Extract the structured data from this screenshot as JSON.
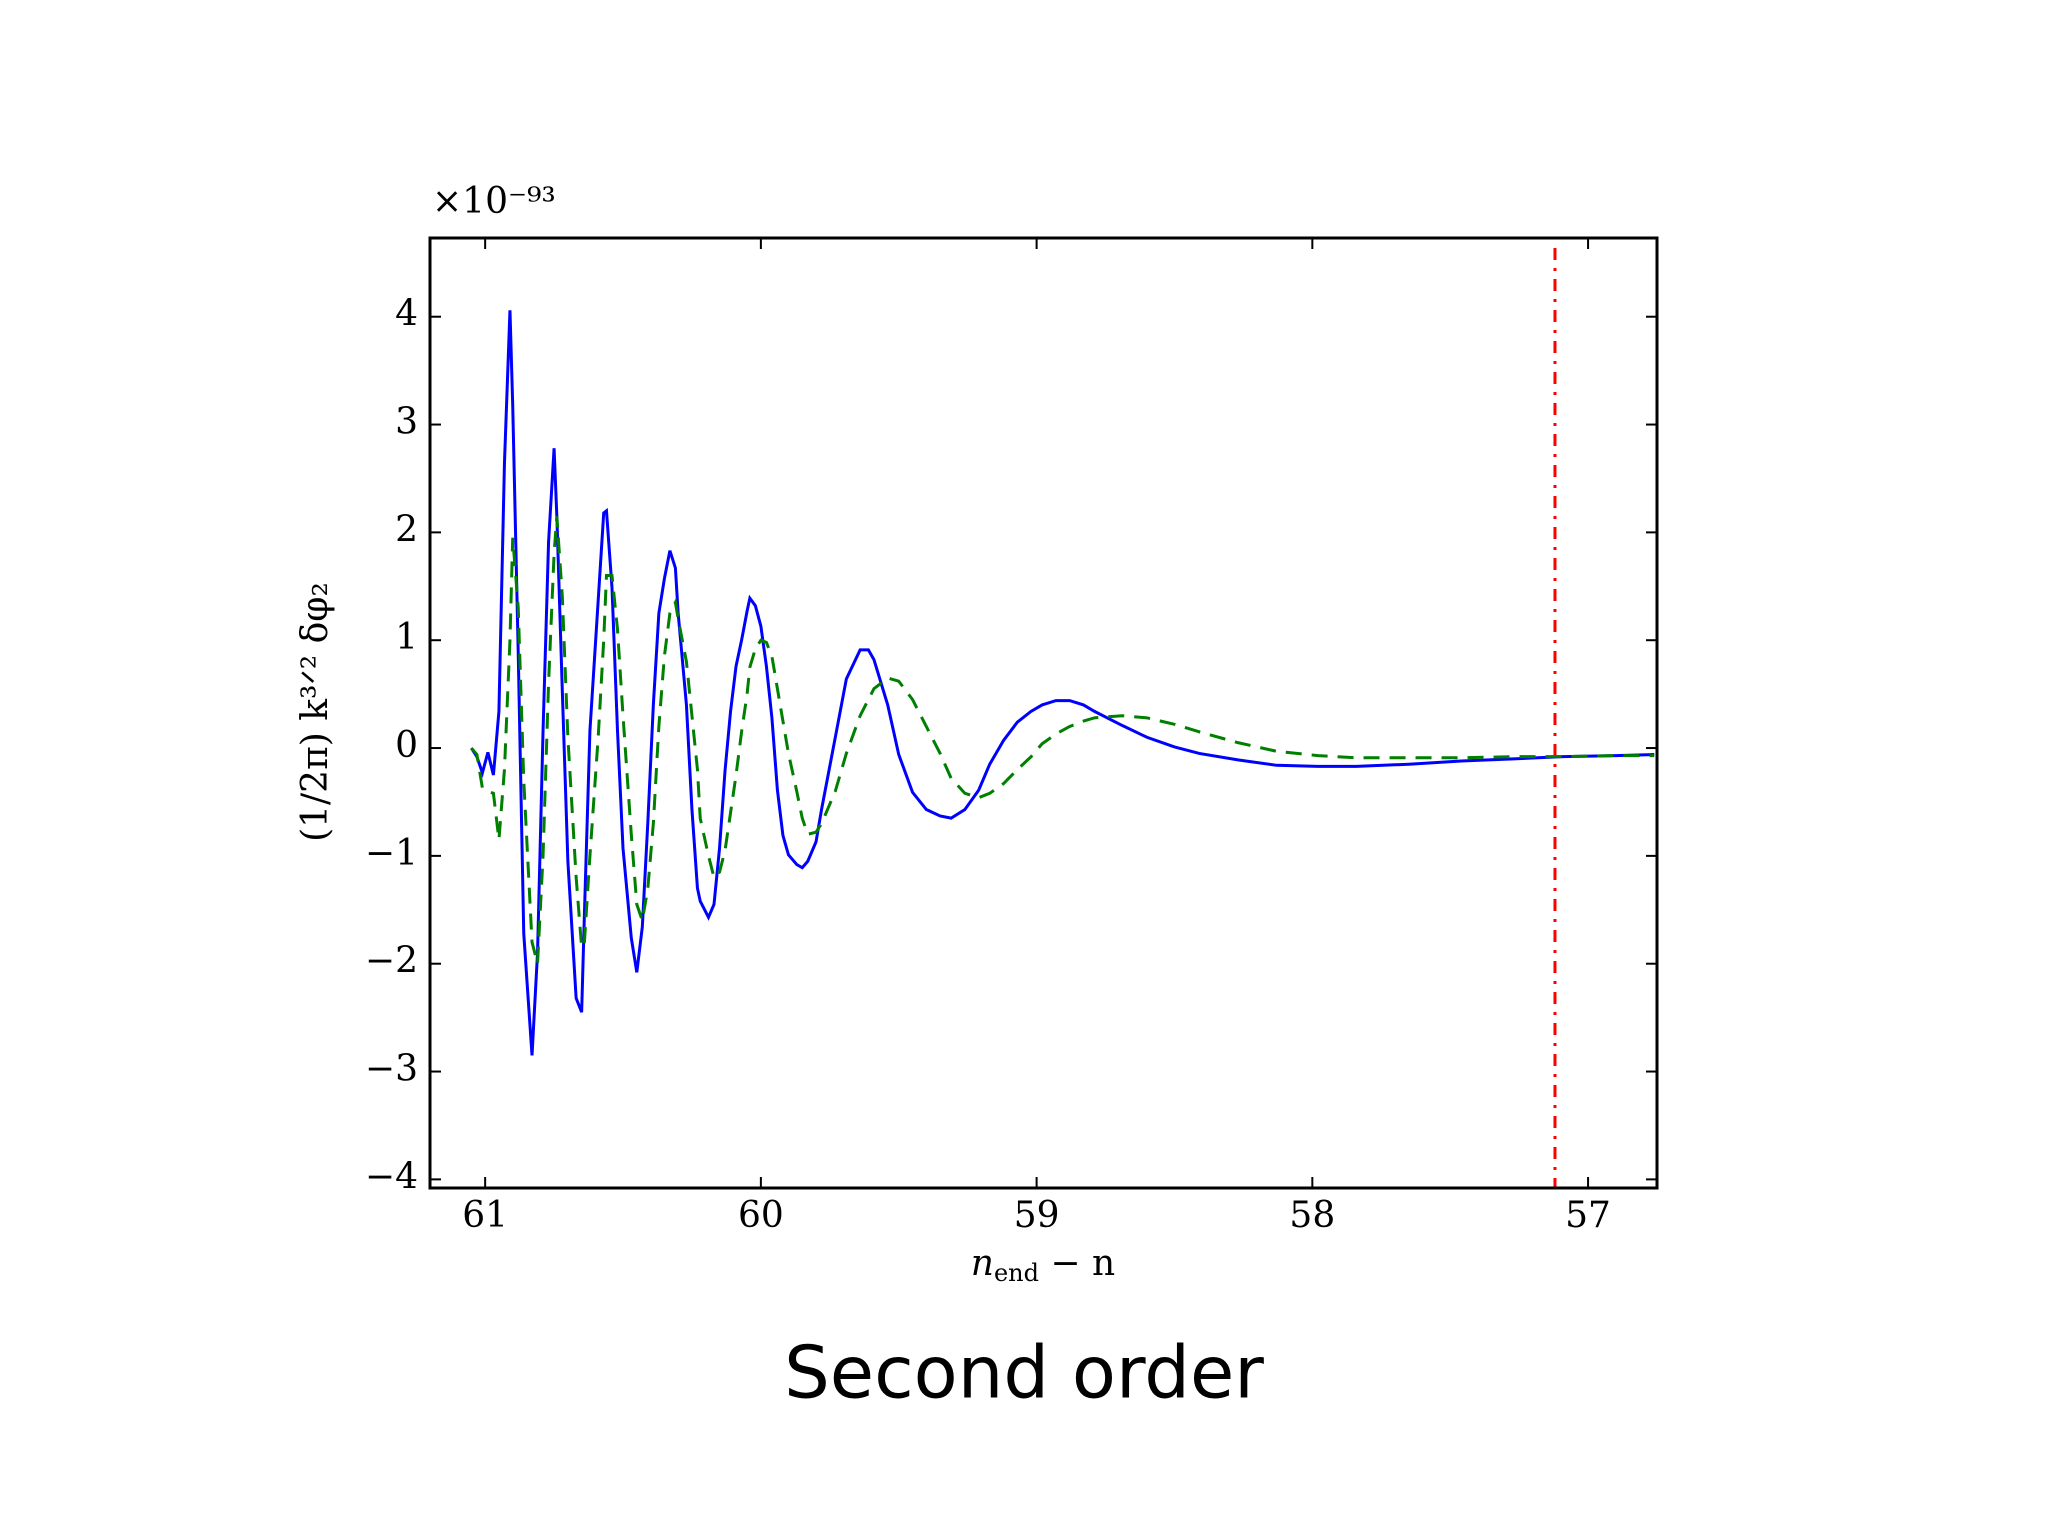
{
  "chart_data": {
    "type": "line",
    "offset_label": "×10⁻⁹³",
    "ylabel": "(1/2π) k³ᐟ² δφ₂",
    "xlabel": {
      "base": "n",
      "sub": "end",
      "rest": " − n"
    },
    "caption": "Second order",
    "xlim": [
      61.2,
      56.75
    ],
    "ylim": [
      -4.08,
      4.73
    ],
    "xticks": [
      61,
      60,
      59,
      58,
      57
    ],
    "yticks": [
      {
        "value": -4,
        "label": "−4"
      },
      {
        "value": -3,
        "label": "−3"
      },
      {
        "value": -2,
        "label": "−2"
      },
      {
        "value": -1,
        "label": "−1"
      },
      0,
      1,
      2,
      3,
      4
    ],
    "vline": {
      "x": 57.12,
      "color": "#ff0000",
      "style": "dashdot"
    },
    "x": [
      61.05,
      61.03,
      61.01,
      60.99,
      60.97,
      60.95,
      60.93,
      60.91,
      60.9,
      60.88,
      60.86,
      60.83,
      60.81,
      60.79,
      60.77,
      60.75,
      60.74,
      60.72,
      60.7,
      60.67,
      60.65,
      60.64,
      60.62,
      60.59,
      60.57,
      60.56,
      60.54,
      60.52,
      60.5,
      60.47,
      60.45,
      60.43,
      60.41,
      60.39,
      60.37,
      60.35,
      60.33,
      60.31,
      60.3,
      60.27,
      60.25,
      60.23,
      60.22,
      60.19,
      60.17,
      60.15,
      60.13,
      60.11,
      60.09,
      60.07,
      60.05,
      60.04,
      60.02,
      60.0,
      59.98,
      59.96,
      59.94,
      59.92,
      59.9,
      59.87,
      59.85,
      59.83,
      59.8,
      59.78,
      59.73,
      59.69,
      59.64,
      59.61,
      59.59,
      59.54,
      59.5,
      59.45,
      59.4,
      59.35,
      59.31,
      59.26,
      59.21,
      59.17,
      59.12,
      59.07,
      59.02,
      58.98,
      58.93,
      58.88,
      58.83,
      58.79,
      58.69,
      58.6,
      58.5,
      58.41,
      58.27,
      58.13,
      57.98,
      57.84,
      57.65,
      57.46,
      57.27,
      57.09,
      56.9,
      56.76
    ],
    "series": [
      {
        "color": "#0000ff",
        "dash": "solid",
        "values": [
          0,
          -0.08,
          -0.23,
          -0.04,
          -0.25,
          0.34,
          2.64,
          4.06,
          3.18,
          0.88,
          -1.72,
          -2.85,
          -1.9,
          0.16,
          1.91,
          2.78,
          2.15,
          0.52,
          -1.05,
          -2.32,
          -2.45,
          -1.54,
          0.16,
          1.37,
          2.18,
          2.2,
          1.49,
          0.16,
          -0.93,
          -1.76,
          -2.08,
          -1.66,
          -0.69,
          0.4,
          1.25,
          1.57,
          1.83,
          1.67,
          1.25,
          0.4,
          -0.57,
          -1.3,
          -1.42,
          -1.57,
          -1.45,
          -0.93,
          -0.21,
          0.34,
          0.76,
          1.0,
          1.27,
          1.39,
          1.32,
          1.13,
          0.76,
          0.28,
          -0.39,
          -0.81,
          -0.99,
          -1.08,
          -1.11,
          -1.05,
          -0.87,
          -0.57,
          0.1,
          0.64,
          0.91,
          0.91,
          0.82,
          0.4,
          -0.06,
          -0.41,
          -0.57,
          -0.63,
          -0.65,
          -0.57,
          -0.39,
          -0.15,
          0.07,
          0.24,
          0.34,
          0.4,
          0.44,
          0.44,
          0.4,
          0.34,
          0.21,
          0.1,
          0.01,
          -0.05,
          -0.11,
          -0.16,
          -0.17,
          -0.17,
          -0.15,
          -0.12,
          -0.1,
          -0.08,
          -0.07,
          -0.06
        ]
      },
      {
        "color": "#007f00",
        "dash": "dashed",
        "values": [
          0,
          -0.06,
          -0.37,
          -0.4,
          -0.42,
          -0.85,
          -0.2,
          1.0,
          1.95,
          1.3,
          -0.3,
          -1.8,
          -2.0,
          -1.0,
          0.6,
          1.8,
          2.15,
          1.4,
          0.1,
          -1.2,
          -1.85,
          -1.8,
          -1.0,
          0.1,
          1.0,
          1.6,
          1.6,
          1.1,
          0.3,
          -0.8,
          -1.45,
          -1.6,
          -1.3,
          -0.7,
          0.2,
          0.85,
          1.25,
          1.35,
          1.2,
          0.8,
          0.3,
          -0.2,
          -0.65,
          -1.0,
          -1.2,
          -1.15,
          -0.95,
          -0.6,
          -0.25,
          0.15,
          0.5,
          0.75,
          0.92,
          1.0,
          0.98,
          0.85,
          0.55,
          0.25,
          -0.05,
          -0.4,
          -0.65,
          -0.8,
          -0.78,
          -0.7,
          -0.4,
          -0.05,
          0.3,
          0.45,
          0.55,
          0.65,
          0.62,
          0.45,
          0.2,
          -0.05,
          -0.28,
          -0.42,
          -0.46,
          -0.42,
          -0.33,
          -0.2,
          -0.08,
          0.04,
          0.13,
          0.2,
          0.25,
          0.28,
          0.3,
          0.28,
          0.22,
          0.15,
          0.05,
          -0.03,
          -0.07,
          -0.09,
          -0.09,
          -0.09,
          -0.08,
          -0.08,
          -0.07,
          -0.07
        ]
      }
    ]
  }
}
